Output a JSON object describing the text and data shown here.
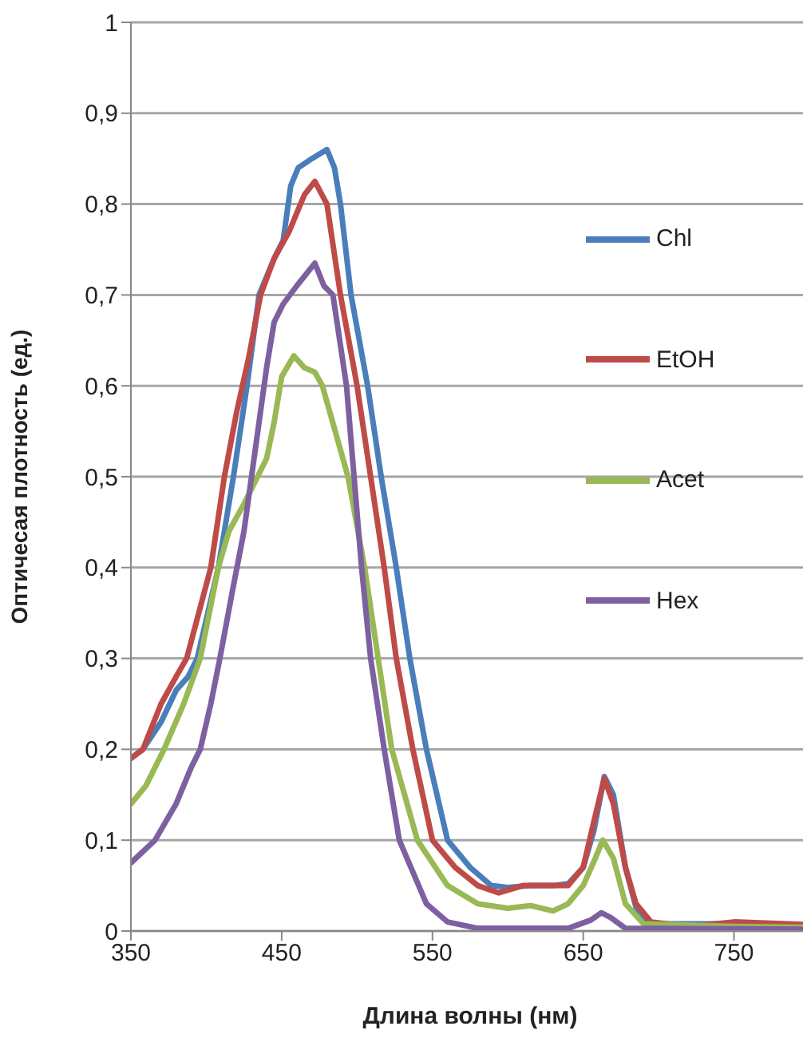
{
  "chart_data": {
    "type": "line",
    "xlabel": "Длина волны (нм)",
    "ylabel": "Оптичесая плотность (ед.)",
    "xlim": [
      350,
      800
    ],
    "xticks": [
      350,
      450,
      550,
      650,
      750
    ],
    "ylim": [
      0,
      1
    ],
    "yticks": [
      0,
      {
        "value": 0.1,
        "label": "0,1"
      },
      {
        "value": 0.2,
        "label": "0,2"
      },
      {
        "value": 0.3,
        "label": "0,3"
      },
      {
        "value": 0.4,
        "label": "0,4"
      },
      {
        "value": 0.5,
        "label": "0,5"
      },
      {
        "value": 0.6,
        "label": "0,6"
      },
      {
        "value": 0.7,
        "label": "0,7"
      },
      {
        "value": 0.8,
        "label": "0,8"
      },
      {
        "value": 0.9,
        "label": "0,9"
      },
      1
    ],
    "grid": "y",
    "legend": "right",
    "series": [
      {
        "name": "Chl",
        "color": "#4a7ebb",
        "x": [
          350,
          358,
          370,
          380,
          388,
          394,
          408,
          418,
          427,
          435,
          445,
          451,
          456,
          461,
          470,
          480,
          485,
          489,
          496,
          507,
          516,
          526,
          535,
          546,
          560,
          575,
          589,
          600,
          615,
          630,
          640,
          650,
          657,
          664,
          670,
          678,
          686,
          695,
          750,
          800
        ],
        "values": [
          0.19,
          0.2,
          0.23,
          0.265,
          0.28,
          0.3,
          0.4,
          0.5,
          0.6,
          0.7,
          0.74,
          0.76,
          0.82,
          0.84,
          0.85,
          0.86,
          0.84,
          0.8,
          0.7,
          0.6,
          0.5,
          0.4,
          0.3,
          0.2,
          0.1,
          0.07,
          0.05,
          0.048,
          0.05,
          0.05,
          0.052,
          0.07,
          0.11,
          0.17,
          0.15,
          0.07,
          0.02,
          0.008,
          0.008,
          0.006
        ]
      },
      {
        "name": "EtOH",
        "color": "#be4b48",
        "x": [
          350,
          358,
          370,
          380,
          387,
          395,
          403,
          412,
          420,
          428,
          436,
          445,
          455,
          465,
          472,
          480,
          489,
          500,
          509,
          518,
          526,
          537,
          550,
          565,
          580,
          594,
          610,
          625,
          640,
          650,
          657,
          664,
          670,
          678,
          685,
          695,
          720,
          750,
          800
        ],
        "values": [
          0.19,
          0.2,
          0.25,
          0.28,
          0.3,
          0.35,
          0.4,
          0.5,
          0.57,
          0.63,
          0.7,
          0.74,
          0.77,
          0.81,
          0.825,
          0.8,
          0.7,
          0.6,
          0.5,
          0.4,
          0.3,
          0.2,
          0.1,
          0.07,
          0.05,
          0.042,
          0.05,
          0.05,
          0.05,
          0.07,
          0.12,
          0.168,
          0.14,
          0.07,
          0.03,
          0.01,
          0.005,
          0.01,
          0.007
        ]
      },
      {
        "name": "Acet",
        "color": "#98b954",
        "x": [
          350,
          360,
          372,
          385,
          396,
          408,
          415,
          425,
          440,
          445,
          450,
          458,
          465,
          472,
          477,
          494,
          505,
          514,
          523,
          540,
          560,
          580,
          600,
          615,
          630,
          640,
          650,
          658,
          663,
          670,
          678,
          690,
          750,
          800
        ],
        "values": [
          0.14,
          0.16,
          0.2,
          0.25,
          0.3,
          0.4,
          0.44,
          0.47,
          0.52,
          0.56,
          0.61,
          0.633,
          0.62,
          0.615,
          0.6,
          0.5,
          0.4,
          0.3,
          0.2,
          0.1,
          0.05,
          0.03,
          0.025,
          0.028,
          0.022,
          0.03,
          0.05,
          0.08,
          0.1,
          0.08,
          0.03,
          0.008,
          0.005,
          0.004
        ]
      },
      {
        "name": "Hex",
        "color": "#7d60a0",
        "x": [
          350,
          366,
          380,
          390,
          396,
          403,
          409,
          418,
          425,
          430,
          440,
          445,
          451,
          460,
          472,
          478,
          484,
          493,
          498,
          503,
          509,
          518,
          528,
          546,
          560,
          580,
          640,
          655,
          662,
          668,
          678,
          800
        ],
        "values": [
          0.075,
          0.1,
          0.14,
          0.18,
          0.2,
          0.25,
          0.3,
          0.38,
          0.44,
          0.5,
          0.62,
          0.67,
          0.69,
          0.71,
          0.735,
          0.71,
          0.7,
          0.6,
          0.5,
          0.4,
          0.3,
          0.2,
          0.1,
          0.03,
          0.01,
          0.003,
          0.003,
          0.012,
          0.02,
          0.015,
          0.003,
          0.002
        ]
      }
    ]
  }
}
